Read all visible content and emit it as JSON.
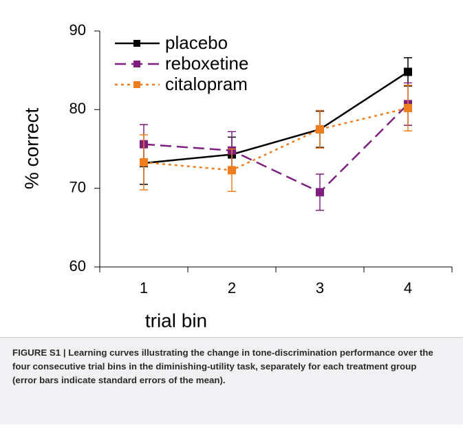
{
  "chart_data": {
    "type": "line",
    "x_label": "trial bin",
    "y_label": "% correct",
    "categories": [
      "1",
      "2",
      "3",
      "4"
    ],
    "ylim": [
      60,
      90
    ],
    "yticks": [
      60,
      70,
      80,
      90
    ],
    "grid": false,
    "legend": "upper left",
    "series": [
      {
        "name": "placebo",
        "color": "#000000",
        "dash": "solid",
        "values": [
          73.2,
          74.3,
          77.5,
          84.8
        ],
        "errors": [
          2.7,
          2.2,
          2.3,
          1.8
        ]
      },
      {
        "name": "reboxetine",
        "color": "#7e1f80",
        "dash": "dashed",
        "values": [
          75.6,
          74.8,
          69.5,
          80.7
        ],
        "errors": [
          2.5,
          2.4,
          2.3,
          2.7
        ]
      },
      {
        "name": "citalopram",
        "color": "#f07e1e",
        "dash": "dotted",
        "values": [
          73.3,
          72.3,
          77.5,
          80.2
        ],
        "errors": [
          3.5,
          2.7,
          2.4,
          2.9
        ]
      }
    ]
  },
  "caption": "FIGURE S1 | Learning curves illustrating the change in tone-discrimination performance over the four consecutive trial bins in the diminishing-utility task, separately for each treatment group (error bars indicate standard errors of the mean)."
}
